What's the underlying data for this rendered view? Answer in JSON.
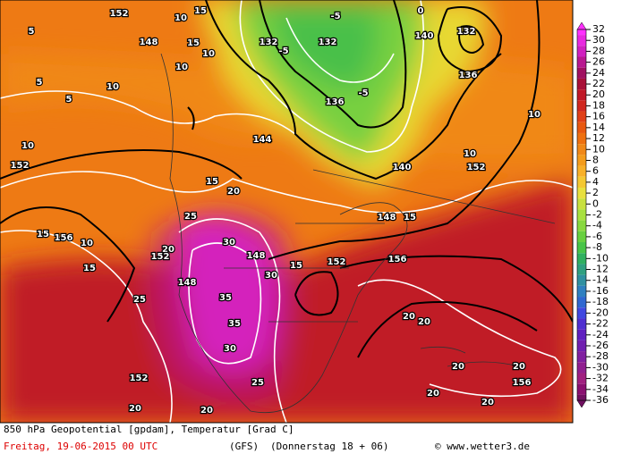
{
  "map": {
    "labels": [
      "5",
      "148",
      "152",
      "10",
      "15",
      "132",
      "-5",
      "-5",
      "132",
      "0",
      "140",
      "132",
      "136",
      "5",
      "10",
      "5",
      "15",
      "10",
      "10",
      "144",
      "136",
      "-5",
      "140",
      "10",
      "152",
      "10",
      "10",
      "152",
      "10",
      "15",
      "156",
      "15",
      "15",
      "20",
      "25",
      "30",
      "20",
      "152",
      "148",
      "35",
      "35",
      "30",
      "25",
      "25",
      "20",
      "20",
      "152",
      "148",
      "30",
      "15",
      "152",
      "156",
      "15",
      "148",
      "20",
      "20",
      "20",
      "20",
      "20",
      "156",
      "20"
    ]
  },
  "colorbar": {
    "levels": [
      32,
      30,
      28,
      26,
      24,
      22,
      20,
      18,
      16,
      14,
      12,
      10,
      8,
      6,
      4,
      2,
      0,
      -2,
      -4,
      -6,
      -8,
      -10,
      -12,
      -14,
      -16,
      -18,
      -20,
      -22,
      -24,
      -26,
      -28,
      -30,
      -32,
      -34,
      -36
    ],
    "colors": [
      "#ff30ff",
      "#e828e0",
      "#d020c0",
      "#b81890",
      "#a01060",
      "#a81038",
      "#c01828",
      "#d02820",
      "#e04018",
      "#e85810",
      "#ee7010",
      "#f08818",
      "#f49c1c",
      "#f8b028",
      "#f4c832",
      "#e8e040",
      "#c8e040",
      "#a8e040",
      "#88d840",
      "#68d040",
      "#48c448",
      "#30b060",
      "#30a080",
      "#3090a0",
      "#3080c0",
      "#3068d0",
      "#4048e0",
      "#5030d0",
      "#6020c0",
      "#7020b0",
      "#8020a0",
      "#902090",
      "#a02080",
      "#8a1070",
      "#701060"
    ]
  },
  "footer": {
    "line1": "850 hPa Geopotential [gpdam], Temperatur [Grad C]",
    "date": "Freitag, 19-06-2015  00 UTC",
    "model": "(GFS)",
    "run": "(Donnerstag 18 + 06)",
    "credit": "© www.wetter3.de"
  }
}
